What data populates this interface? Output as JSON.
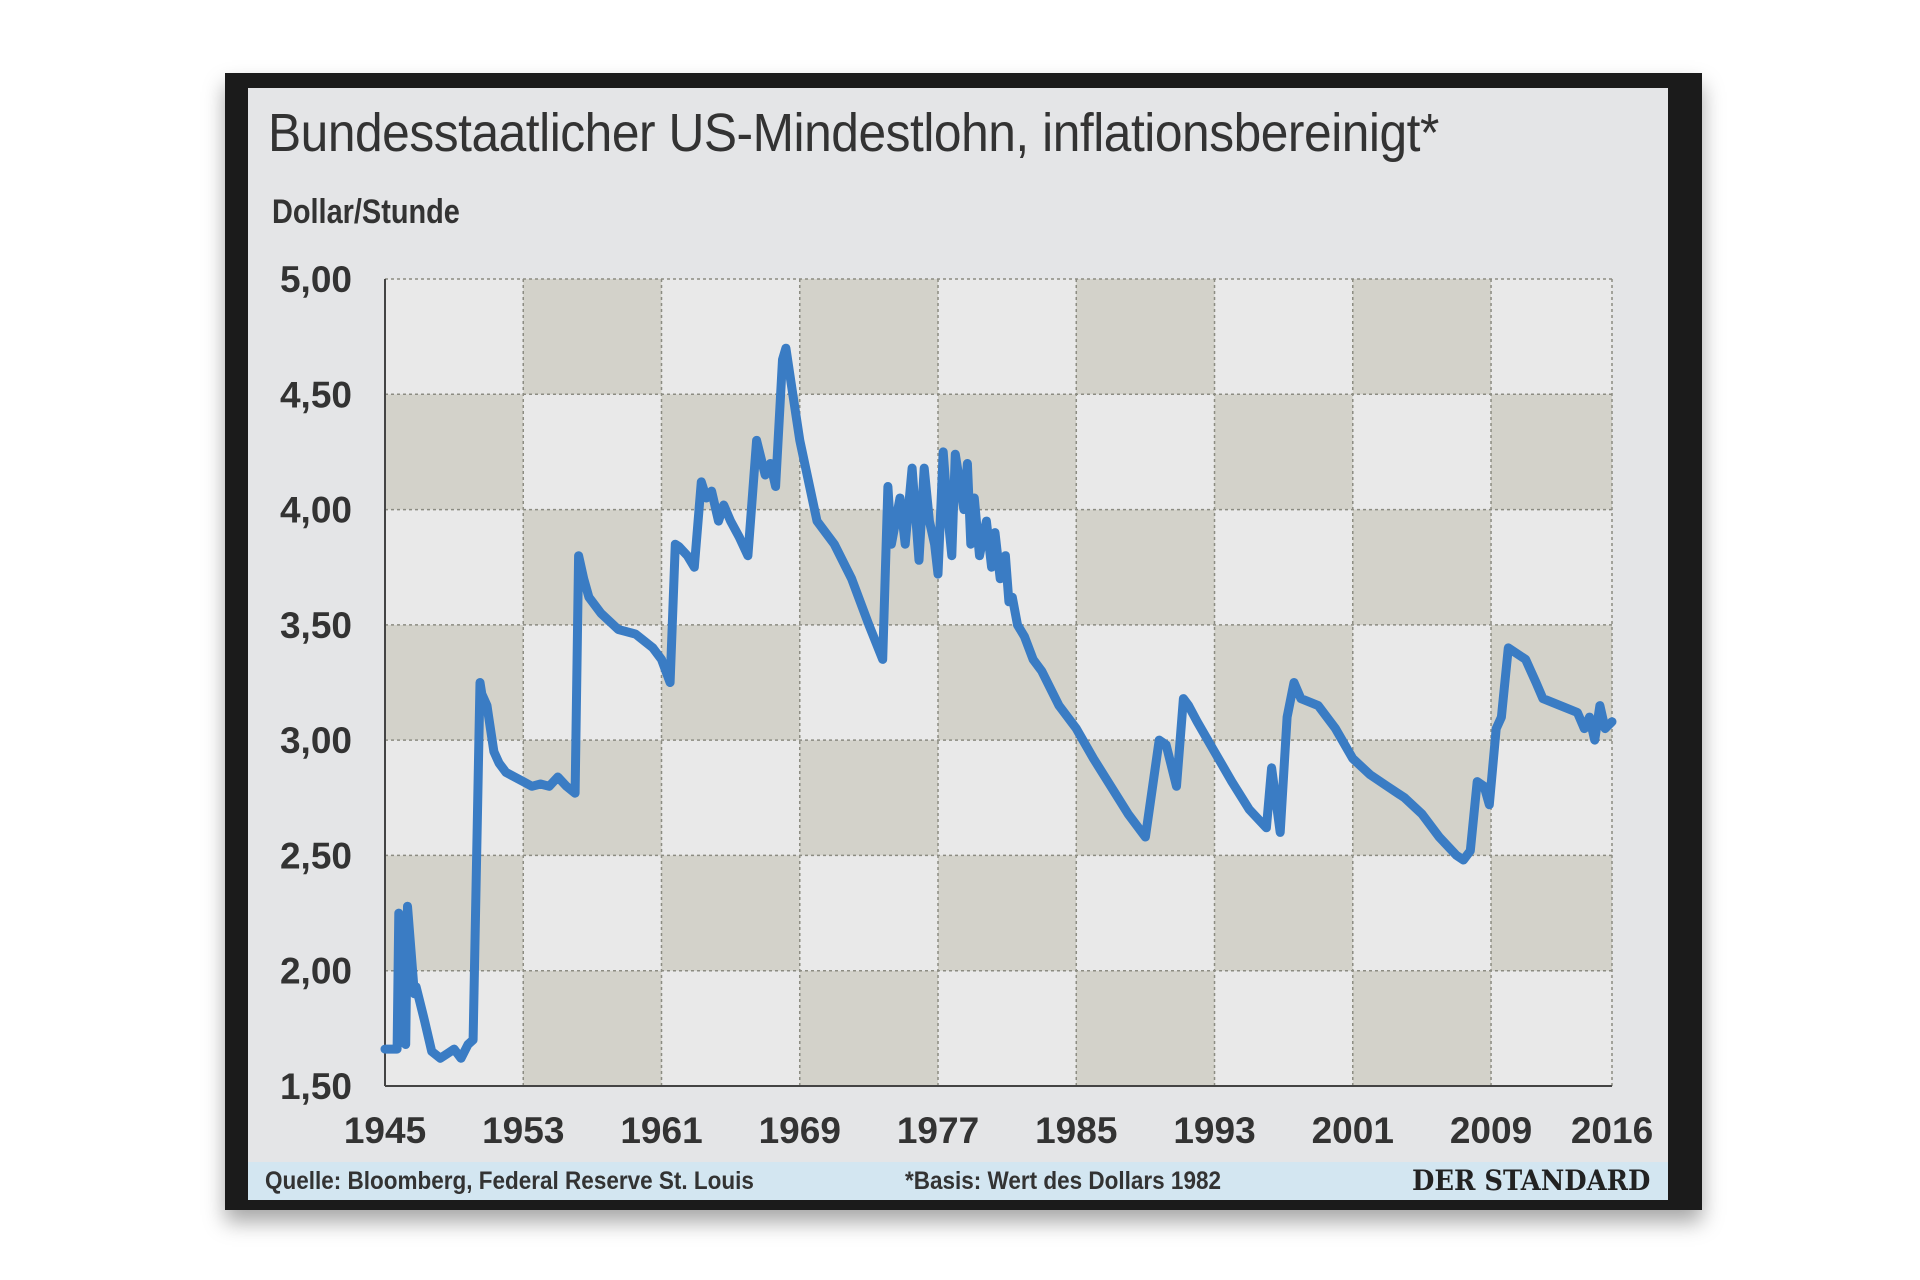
{
  "chart_data": {
    "type": "line",
    "title": "Bundesstaatlicher US-Mindestlohn, inflationsbereinigt*",
    "ylabel": "Dollar/Stunde",
    "xlabel": "",
    "xlim": [
      1945,
      2016
    ],
    "ylim": [
      1.5,
      5.0
    ],
    "x_ticks": [
      "1945",
      "1953",
      "1961",
      "1969",
      "1977",
      "1985",
      "1993",
      "2001",
      "2009",
      "2016"
    ],
    "y_ticks": [
      "1,50",
      "2,00",
      "2,50",
      "3,00",
      "3,50",
      "4,00",
      "4,50",
      "5,00"
    ],
    "grid": true,
    "series": [
      {
        "color": "#3a7cc4",
        "x": [
          1945.0,
          1945.7,
          1945.8,
          1946.2,
          1946.3,
          1946.7,
          1946.8,
          1947.2,
          1947.3,
          1947.7,
          1948.2,
          1948.6,
          1949.0,
          1949.4,
          1949.8,
          1950.1,
          1950.5,
          1950.6,
          1950.9,
          1951.0,
          1951.3,
          1951.6,
          1952.0,
          1952.5,
          1953.0,
          1953.5,
          1954.0,
          1954.5,
          1955.0,
          1955.5,
          1956.0,
          1956.2,
          1956.5,
          1956.8,
          1957.5,
          1958.5,
          1959.5,
          1960.5,
          1961.0,
          1961.5,
          1961.8,
          1962.0,
          1962.5,
          1962.9,
          1963.3,
          1963.6,
          1963.9,
          1964.3,
          1964.6,
          1965.0,
          1965.5,
          1966.0,
          1966.5,
          1967.0,
          1967.3,
          1967.6,
          1968.0,
          1968.2,
          1968.6,
          1969.0,
          1970.0,
          1971.0,
          1972.0,
          1973.0,
          1973.8,
          1974.1,
          1974.3,
          1974.8,
          1975.1,
          1975.5,
          1975.9,
          1976.2,
          1976.5,
          1976.8,
          1977.0,
          1977.3,
          1977.6,
          1977.8,
          1978.0,
          1978.5,
          1978.7,
          1978.9,
          1979.1,
          1979.4,
          1979.8,
          1980.1,
          1980.3,
          1980.6,
          1980.9,
          1981.1,
          1981.3,
          1981.6,
          1982.0,
          1982.5,
          1983.0,
          1984.0,
          1985.0,
          1986.0,
          1987.0,
          1988.0,
          1989.0,
          1989.8,
          1990.2,
          1990.8,
          1991.2,
          1991.5,
          1992.0,
          1993.0,
          1994.0,
          1995.0,
          1996.0,
          1996.3,
          1996.8,
          1997.2,
          1997.6,
          1998.0,
          1999.0,
          2000.0,
          2001.0,
          2002.0,
          2003.0,
          2004.0,
          2005.0,
          2006.0,
          2007.0,
          2007.4,
          2007.8,
          2008.2,
          2008.6,
          2008.9,
          2009.3,
          2009.6,
          2010.0,
          2011.0,
          2011.3,
          2011.6,
          2012.0,
          2013.0,
          2014.0,
          2014.4,
          2014.7,
          2015.0,
          2015.3,
          2015.6,
          2016.0
        ],
        "values": [
          1.66,
          1.66,
          2.25,
          1.68,
          2.28,
          1.9,
          1.93,
          1.81,
          1.78,
          1.65,
          1.62,
          1.64,
          1.66,
          1.62,
          1.68,
          1.7,
          3.25,
          3.2,
          3.15,
          3.1,
          2.95,
          2.9,
          2.86,
          2.84,
          2.82,
          2.8,
          2.81,
          2.8,
          2.84,
          2.8,
          2.77,
          3.8,
          3.7,
          3.62,
          3.55,
          3.48,
          3.46,
          3.4,
          3.35,
          3.25,
          3.85,
          3.84,
          3.8,
          3.75,
          4.12,
          4.05,
          4.08,
          3.95,
          4.02,
          3.95,
          3.88,
          3.8,
          4.3,
          4.15,
          4.2,
          4.1,
          4.65,
          4.7,
          4.5,
          4.3,
          3.95,
          3.85,
          3.7,
          3.5,
          3.35,
          4.1,
          3.85,
          4.05,
          3.85,
          4.18,
          3.78,
          4.18,
          3.95,
          3.85,
          3.72,
          4.25,
          3.95,
          3.8,
          4.24,
          4.0,
          4.2,
          3.85,
          4.05,
          3.8,
          3.95,
          3.75,
          3.9,
          3.7,
          3.8,
          3.6,
          3.62,
          3.5,
          3.45,
          3.35,
          3.3,
          3.15,
          3.05,
          2.92,
          2.8,
          2.68,
          2.58,
          3.0,
          2.98,
          2.8,
          3.18,
          3.15,
          3.08,
          2.95,
          2.82,
          2.7,
          2.62,
          2.88,
          2.6,
          3.1,
          3.25,
          3.18,
          3.15,
          3.05,
          2.92,
          2.85,
          2.8,
          2.75,
          2.68,
          2.58,
          2.5,
          2.48,
          2.52,
          2.82,
          2.8,
          2.72,
          3.05,
          3.1,
          3.4,
          3.35,
          3.3,
          3.25,
          3.18,
          3.15,
          3.12,
          3.05,
          3.1,
          3.0,
          3.15,
          3.05,
          3.08
        ]
      }
    ]
  },
  "footer": {
    "source": "Quelle: Bloomberg, Federal Reserve St. Louis",
    "note": "*Basis: Wert des Dollars 1982",
    "brand": "DER STANDARD"
  }
}
